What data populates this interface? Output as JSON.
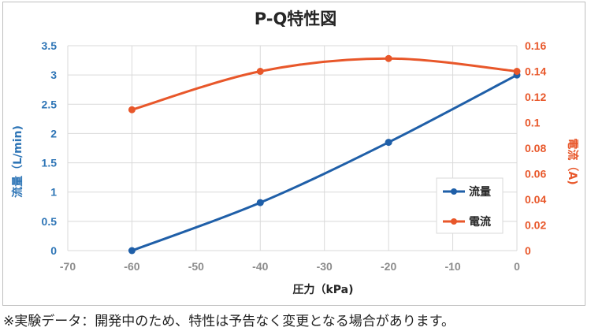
{
  "chart_data": {
    "type": "line",
    "title": "P-Q特性図",
    "xlabel": "圧力（kPa)",
    "ylabel_left": "流量（L/min)",
    "ylabel_right": "電流（A)",
    "xlim": [
      -70,
      0
    ],
    "x_ticks": [
      "-70",
      "-60",
      "-50",
      "-40",
      "-30",
      "-20",
      "-10",
      "0"
    ],
    "ylim_left": [
      0,
      3.5
    ],
    "y_ticks_left": [
      "0",
      "0.5",
      "1",
      "1.5",
      "2",
      "2.5",
      "3",
      "3.5"
    ],
    "ylim_right": [
      0,
      0.16
    ],
    "y_ticks_right": [
      "0",
      "0.02",
      "0.04",
      "0.06",
      "0.08",
      "0.1",
      "0.12",
      "0.14",
      "0.16"
    ],
    "grid": true,
    "legend_position": "bottom-right",
    "series": [
      {
        "name": "流量",
        "axis": "left",
        "color": "#1f5fa8",
        "x": [
          -60,
          -40,
          -20,
          0
        ],
        "y": [
          0,
          0.82,
          1.85,
          3.0
        ]
      },
      {
        "name": "電流",
        "axis": "right",
        "color": "#e8572a",
        "x": [
          -60,
          -40,
          -20,
          0
        ],
        "y": [
          0.11,
          0.14,
          0.15,
          0.14
        ]
      }
    ]
  },
  "footnote": "※実験データ：開発中のため、特性は予告なく変更となる場合があります。"
}
